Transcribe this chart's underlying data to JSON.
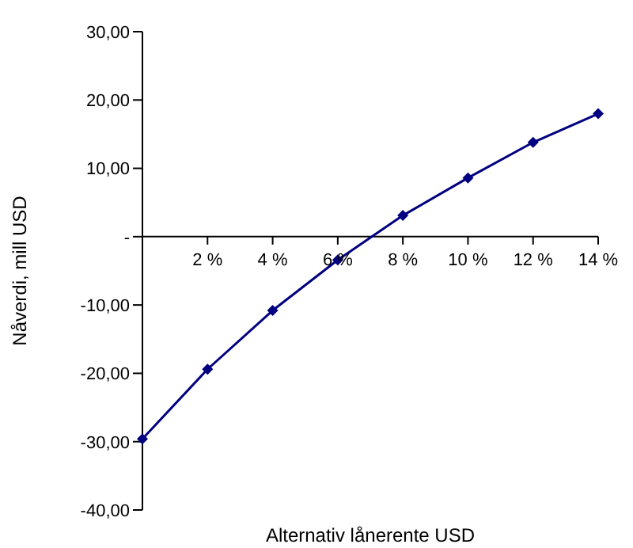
{
  "chart_data": {
    "type": "line",
    "xlabel": "Alternativ lånerente USD",
    "ylabel": "Nåverdi, mill USD",
    "x": [
      0,
      2,
      4,
      6,
      8,
      10,
      12,
      14
    ],
    "series": [
      {
        "color": "#000080",
        "values": [
          -29.6,
          -19.4,
          -10.8,
          -3.4,
          3.1,
          8.6,
          13.8,
          18.0
        ]
      }
    ],
    "xlim": [
      0,
      14
    ],
    "xticks": [
      {
        "value": 2,
        "label": "2 %"
      },
      {
        "value": 4,
        "label": "4 %"
      },
      {
        "value": 6,
        "label": "6 %"
      },
      {
        "value": 8,
        "label": "8 %"
      },
      {
        "value": 10,
        "label": "10 %"
      },
      {
        "value": 12,
        "label": "12 %"
      },
      {
        "value": 14,
        "label": "14 %"
      }
    ],
    "ylim": [
      -40,
      30
    ],
    "yticks": [
      {
        "value": -40,
        "label": "-40,00"
      },
      {
        "value": -30,
        "label": "-30,00"
      },
      {
        "value": -20,
        "label": "-20,00"
      },
      {
        "value": -10,
        "label": "-10,00"
      },
      {
        "value": 0,
        "label": "-"
      },
      {
        "value": 10,
        "label": "10,00"
      },
      {
        "value": 20,
        "label": "20,00"
      },
      {
        "value": 30,
        "label": "30,00"
      }
    ],
    "marker": "diamond",
    "grid": false,
    "legend": false
  }
}
